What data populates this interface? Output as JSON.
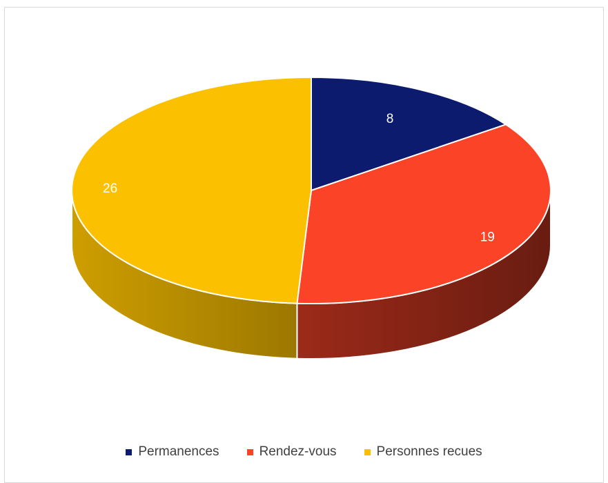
{
  "chart_data": {
    "type": "pie",
    "style": "3d",
    "categories": [
      "Permanences",
      "Rendez-vous",
      "Personnes recues"
    ],
    "values": [
      8,
      19,
      26
    ],
    "colors": [
      "#0c1b6e",
      "#fb4328",
      "#fbc100"
    ],
    "data_labels": [
      "8",
      "19",
      "26"
    ],
    "legend_position": "bottom"
  }
}
